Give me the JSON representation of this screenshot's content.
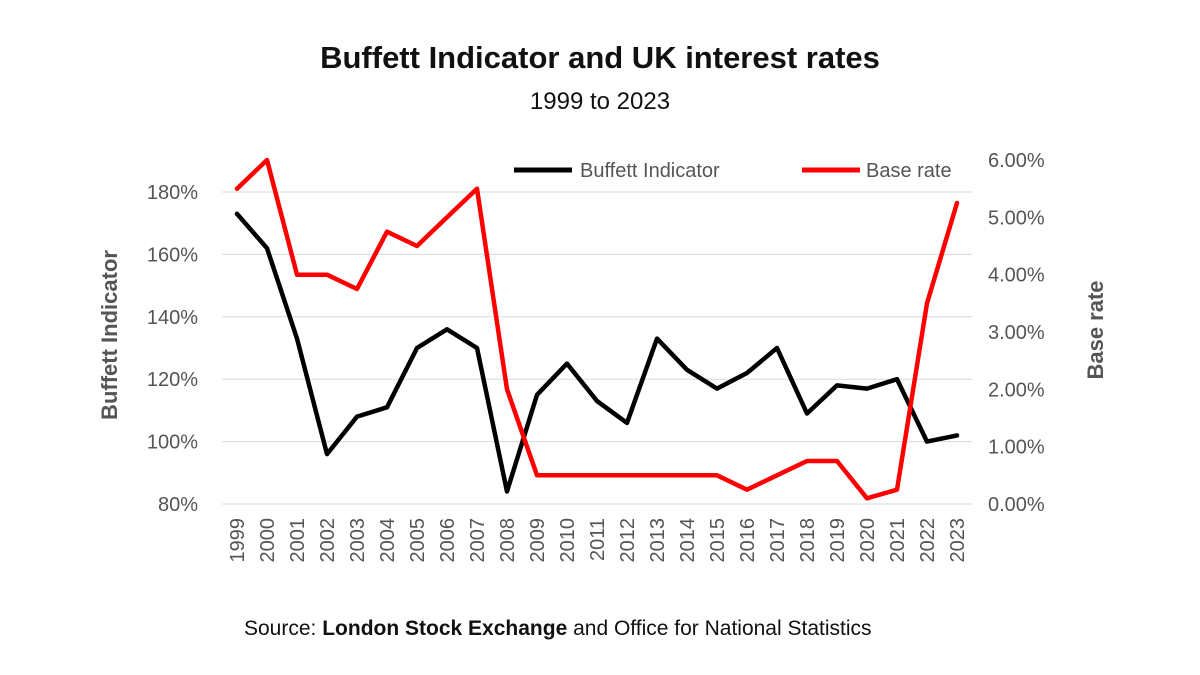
{
  "chart_data": {
    "type": "line",
    "title": "Buffett Indicator and UK interest rates",
    "subtitle": "1999 to 2023",
    "x": [
      "1999",
      "2000",
      "2001",
      "2002",
      "2003",
      "2004",
      "2005",
      "2006",
      "2007",
      "2008",
      "2009",
      "2010",
      "2011",
      "2012",
      "2013",
      "2014",
      "2015",
      "2016",
      "2017",
      "2018",
      "2019",
      "2020",
      "2021",
      "2022",
      "2023"
    ],
    "series": [
      {
        "name": "Buffett Indicator",
        "axis": "left",
        "color": "#000000",
        "values": [
          173,
          162,
          133,
          96,
          108,
          111,
          130,
          136,
          130,
          84,
          115,
          125,
          113,
          106,
          133,
          123,
          117,
          122,
          130,
          109,
          118,
          117,
          120,
          100,
          102
        ]
      },
      {
        "name": "Base rate",
        "axis": "right",
        "color": "#ff0000",
        "values": [
          5.5,
          6.0,
          4.0,
          4.0,
          3.75,
          4.75,
          4.5,
          5.0,
          5.5,
          2.0,
          0.5,
          0.5,
          0.5,
          0.5,
          0.5,
          0.5,
          0.5,
          0.25,
          0.5,
          0.75,
          0.75,
          0.1,
          0.25,
          3.5,
          5.25
        ]
      }
    ],
    "ylabel": "Buffett Indicator",
    "y2label": "Base rate",
    "ylim": [
      80,
      180
    ],
    "y2lim": [
      0,
      6
    ],
    "yticks": [
      "80%",
      "100%",
      "120%",
      "140%",
      "160%",
      "180%"
    ],
    "y2ticks": [
      "0.00%",
      "1.00%",
      "2.00%",
      "3.00%",
      "4.00%",
      "5.00%",
      "6.00%"
    ],
    "grid": true,
    "legend": "top-right"
  },
  "source": {
    "prefix": "Source: ",
    "bold": "London Stock Exchange",
    "suffix": " and Office for National Statistics"
  }
}
